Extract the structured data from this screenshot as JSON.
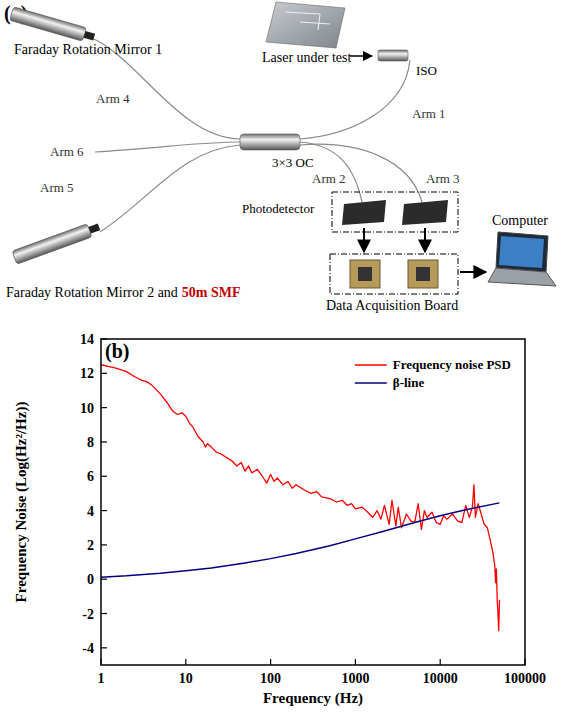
{
  "diagram": {
    "panel_label": "(a)",
    "components": [
      {
        "label": "Faraday Rotation Mirror  1"
      },
      {
        "label": "Laser under test"
      },
      {
        "label": "ISO"
      },
      {
        "label": "3×3 OC"
      },
      {
        "label": "Photodetector"
      },
      {
        "label": "Computer"
      },
      {
        "label": "Data Acquisition Board"
      },
      {
        "label": "Faraday Rotation Mirror 2 and",
        "highlight": "50m SMF"
      }
    ],
    "arms": [
      "Arm 1",
      "Arm 2",
      "Arm 3",
      "Arm 4",
      "Arm 5",
      "Arm 6"
    ]
  },
  "chart_data": {
    "type": "line",
    "annotations": [
      "(b)"
    ],
    "xlabel": "Frequency (Hz)",
    "ylabel": "Frequency Noise (Log(Hz²/Hz))",
    "log": "x",
    "grid": false,
    "legend": "upper right",
    "xlim": [
      1,
      100000
    ],
    "xticks": [
      1,
      10,
      100,
      1000,
      10000,
      100000
    ],
    "ylim": [
      -5,
      14
    ],
    "yticks": [
      -4,
      -2,
      0,
      2,
      4,
      6,
      8,
      10,
      12,
      14
    ],
    "series": [
      {
        "name": "Frequency noise PSD",
        "color": "#ff0000",
        "x": [
          1,
          1.5,
          2,
          2.5,
          3,
          3.5,
          4,
          5,
          6,
          7,
          8,
          9,
          10,
          11,
          12,
          14,
          16,
          17,
          18,
          20,
          23,
          26,
          30,
          35,
          40,
          45,
          50,
          55,
          60,
          70,
          80,
          90,
          100,
          110,
          120,
          140,
          160,
          180,
          200,
          250,
          300,
          350,
          400,
          500,
          600,
          700,
          800,
          900,
          1000,
          1200,
          1400,
          1600,
          1800,
          2000,
          2200,
          2500,
          2700,
          3000,
          3200,
          3500,
          4000,
          4500,
          5000,
          5500,
          6000,
          6500,
          7000,
          8000,
          9000,
          10000,
          11000,
          12000,
          14000,
          16000,
          18000,
          20000,
          22000,
          24000,
          25000,
          26000,
          28000,
          30000,
          33000,
          36000,
          38000,
          40000,
          42000,
          44000,
          45000,
          46000,
          47000,
          48000,
          49000,
          50000
        ],
        "values": [
          12.5,
          12.3,
          12.1,
          11.8,
          11.6,
          11.5,
          11.3,
          10.8,
          10.3,
          9.8,
          9.6,
          9.7,
          9.5,
          9.1,
          8.9,
          8.3,
          8.0,
          7.7,
          7.9,
          7.7,
          7.4,
          7.3,
          7.1,
          6.9,
          6.6,
          6.8,
          6.3,
          6.6,
          6.2,
          6.4,
          6.0,
          5.6,
          6.1,
          5.7,
          5.9,
          5.5,
          5.7,
          5.3,
          5.5,
          5.2,
          5.0,
          5.1,
          4.8,
          4.7,
          4.5,
          4.6,
          4.3,
          4.4,
          4.1,
          4.2,
          3.9,
          3.6,
          4.0,
          3.5,
          4.3,
          3.2,
          4.6,
          3.1,
          4.2,
          3.0,
          3.8,
          3.4,
          3.3,
          4.4,
          2.9,
          4.0,
          3.6,
          3.9,
          3.3,
          3.2,
          3.7,
          3.5,
          3.8,
          3.4,
          3.3,
          4.3,
          3.6,
          4.2,
          5.5,
          3.6,
          4.4,
          3.9,
          3.2,
          3.0,
          2.5,
          2.0,
          1.5,
          0.8,
          -0.2,
          0.6,
          -1.2,
          -2.0,
          -3.0,
          -1.2
        ]
      },
      {
        "name": "β-line",
        "color": "#000080",
        "x": [
          1,
          2,
          5,
          10,
          20,
          50,
          100,
          200,
          500,
          1000,
          2000,
          5000,
          10000,
          20000,
          50000
        ],
        "values": [
          0.12,
          0.2,
          0.35,
          0.5,
          0.65,
          0.95,
          1.2,
          1.5,
          1.95,
          2.35,
          2.75,
          3.3,
          3.7,
          4.05,
          4.45
        ]
      }
    ]
  }
}
